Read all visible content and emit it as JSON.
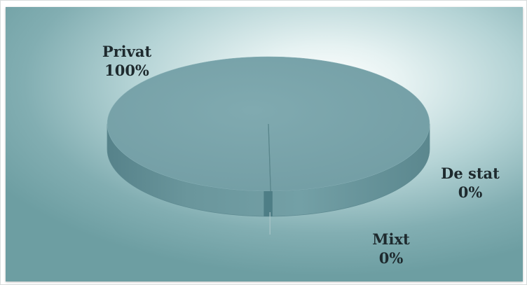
{
  "chart_data": {
    "type": "pie",
    "style": "3d",
    "title": "",
    "slices": [
      {
        "name": "Privat",
        "value": 100,
        "label": "100%",
        "color": "#7ba7ad"
      },
      {
        "name": "De stat",
        "value": 0,
        "label": "0%",
        "color": "#1b4e55"
      },
      {
        "name": "Mixt",
        "value": 0,
        "label": "0%",
        "color": "#4e7e86"
      }
    ],
    "legend": "none"
  }
}
